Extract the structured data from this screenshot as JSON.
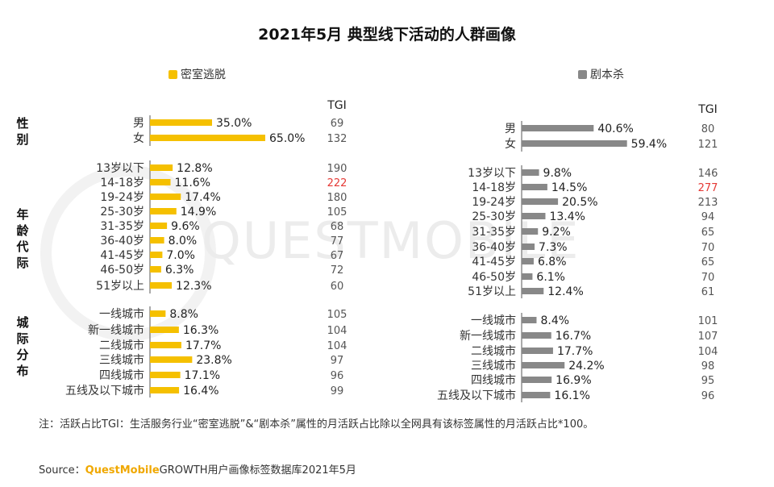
{
  "title": "2021年5月 典型线下活动的人群画像",
  "watermark": "QUESTMOBILE",
  "note": "注：活跃占比TGI：生活服务行业“密室逃脱”&“剧本杀”属性的月活跃占比除以全网具有该标签属性的月活跃占比*100。",
  "source": {
    "prefix": "Source：",
    "brand": "QuestMobile",
    "rest": "GROWTH用户画像标签数据库2021年5月"
  },
  "colors": {
    "escape": "#f5c000",
    "script": "#888888",
    "highlight": "#e53935"
  },
  "chart_data": [
    {
      "type": "bar",
      "orientation": "horizontal",
      "name": "escape",
      "legend": "密室逃脱",
      "tgi_header": "TGI",
      "unit": "%",
      "highlight_tgi": 222,
      "groups": [
        {
          "name": "性别",
          "categories": [
            "男",
            "女"
          ],
          "values": [
            35.0,
            65.0
          ],
          "labels": [
            "35.0%",
            "65.0%"
          ],
          "tgi": [
            69,
            132
          ]
        },
        {
          "name": "年龄代际",
          "categories": [
            "13岁以下",
            "14-18岁",
            "19-24岁",
            "25-30岁",
            "31-35岁",
            "36-40岁",
            "41-45岁",
            "46-50岁",
            "51岁以上"
          ],
          "values": [
            12.8,
            11.6,
            17.4,
            14.9,
            9.6,
            8.0,
            7.0,
            6.3,
            12.3
          ],
          "labels": [
            "12.8%",
            "11.6%",
            "17.4%",
            "14.9%",
            "9.6%",
            "8.0%",
            "7.0%",
            "6.3%",
            "12.3%"
          ],
          "tgi": [
            190,
            222,
            180,
            105,
            68,
            77,
            67,
            72,
            60
          ]
        },
        {
          "name": "城际分布",
          "categories": [
            "一线城市",
            "新一线城市",
            "二线城市",
            "三线城市",
            "四线城市",
            "五线及以下城市"
          ],
          "values": [
            8.8,
            16.3,
            17.7,
            23.8,
            17.1,
            16.4
          ],
          "labels": [
            "8.8%",
            "16.3%",
            "17.7%",
            "23.8%",
            "17.1%",
            "16.4%"
          ],
          "tgi": [
            105,
            104,
            104,
            97,
            96,
            99
          ]
        }
      ]
    },
    {
      "type": "bar",
      "orientation": "horizontal",
      "name": "script",
      "legend": "剧本杀",
      "tgi_header": "TGI",
      "unit": "%",
      "highlight_tgi": 277,
      "groups": [
        {
          "name": "性别",
          "categories": [
            "男",
            "女"
          ],
          "values": [
            40.6,
            59.4
          ],
          "labels": [
            "40.6%",
            "59.4%"
          ],
          "tgi": [
            80,
            121
          ]
        },
        {
          "name": "年龄代际",
          "categories": [
            "13岁以下",
            "14-18岁",
            "19-24岁",
            "25-30岁",
            "31-35岁",
            "36-40岁",
            "41-45岁",
            "46-50岁",
            "51岁以上"
          ],
          "values": [
            9.8,
            14.5,
            20.5,
            13.4,
            9.2,
            7.3,
            6.8,
            6.1,
            12.4
          ],
          "labels": [
            "9.8%",
            "14.5%",
            "20.5%",
            "13.4%",
            "9.2%",
            "7.3%",
            "6.8%",
            "6.1%",
            "12.4%"
          ],
          "tgi": [
            146,
            277,
            213,
            94,
            65,
            70,
            65,
            70,
            61
          ]
        },
        {
          "name": "城际分布",
          "categories": [
            "一线城市",
            "新一线城市",
            "二线城市",
            "三线城市",
            "四线城市",
            "五线及以下城市"
          ],
          "values": [
            8.4,
            16.7,
            17.7,
            24.2,
            16.9,
            16.1
          ],
          "labels": [
            "8.4%",
            "16.7%",
            "17.7%",
            "24.2%",
            "16.9%",
            "16.1%"
          ],
          "tgi": [
            101,
            107,
            104,
            98,
            95,
            96
          ]
        }
      ]
    }
  ]
}
